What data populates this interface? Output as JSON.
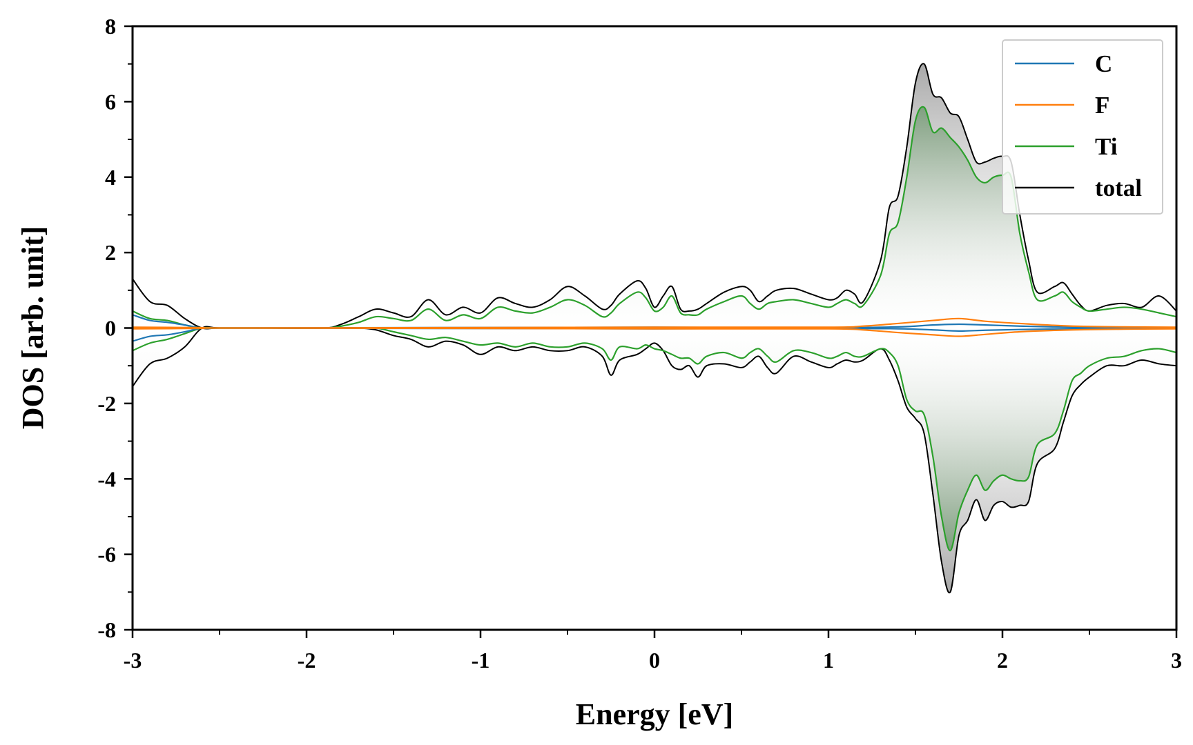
{
  "chart_data": {
    "type": "line",
    "xlabel": "Energy [eV]",
    "ylabel": "DOS [arb. unit]",
    "xlim": [
      -3,
      3
    ],
    "ylim": [
      -8,
      8
    ],
    "x_ticks": [
      -3,
      -2,
      -1,
      0,
      1,
      2,
      3
    ],
    "y_ticks": [
      -8,
      -6,
      -4,
      -2,
      0,
      2,
      4,
      6,
      8
    ],
    "x_tick_labels": [
      "-3",
      "-2",
      "-1",
      "0",
      "1",
      "2",
      "3"
    ],
    "y_tick_labels": [
      "-8",
      "-6",
      "-4",
      "-2",
      "0",
      "2",
      "4",
      "6",
      "8"
    ],
    "grid": false,
    "legend_position": "top-right",
    "series": [
      {
        "name": "C",
        "color": "#1f77b4",
        "x": [
          -3.0,
          -2.9,
          -2.8,
          -2.7,
          -2.6,
          -2.5,
          0.0,
          1.0,
          1.4,
          1.6,
          1.75,
          1.9,
          2.1,
          2.4,
          2.7,
          3.0
        ],
        "up": [
          0.35,
          0.2,
          0.15,
          0.08,
          0.0,
          0.0,
          0.02,
          0.01,
          0.03,
          0.08,
          0.1,
          0.08,
          0.05,
          0.02,
          0.01,
          0.01
        ],
        "down": [
          -0.35,
          -0.22,
          -0.18,
          -0.1,
          0.0,
          0.0,
          -0.02,
          -0.01,
          -0.02,
          -0.05,
          -0.08,
          -0.06,
          -0.04,
          -0.02,
          -0.01,
          -0.01
        ]
      },
      {
        "name": "F",
        "color": "#ff7f0e",
        "x": [
          -3.0,
          -2.6,
          -2.5,
          0.0,
          1.0,
          1.2,
          1.4,
          1.6,
          1.75,
          1.9,
          2.1,
          2.4,
          2.7,
          3.0
        ],
        "up": [
          0.02,
          0.01,
          0.0,
          0.02,
          0.02,
          0.05,
          0.12,
          0.2,
          0.25,
          0.18,
          0.12,
          0.05,
          0.03,
          0.02
        ],
        "down": [
          -0.02,
          -0.01,
          0.0,
          -0.02,
          -0.02,
          -0.05,
          -0.12,
          -0.18,
          -0.22,
          -0.17,
          -0.1,
          -0.05,
          -0.03,
          -0.02
        ]
      },
      {
        "name": "Ti",
        "color": "#2ca02c",
        "x": [
          -3.0,
          -2.9,
          -2.8,
          -2.7,
          -2.6,
          -2.5,
          -2.2,
          -1.9,
          -1.8,
          -1.7,
          -1.6,
          -1.5,
          -1.4,
          -1.3,
          -1.2,
          -1.1,
          -1.0,
          -0.9,
          -0.8,
          -0.7,
          -0.6,
          -0.5,
          -0.4,
          -0.3,
          -0.25,
          -0.2,
          -0.1,
          -0.05,
          0.0,
          0.05,
          0.1,
          0.15,
          0.2,
          0.25,
          0.3,
          0.4,
          0.5,
          0.55,
          0.6,
          0.65,
          0.7,
          0.8,
          0.9,
          1.0,
          1.05,
          1.1,
          1.15,
          1.2,
          1.3,
          1.35,
          1.4,
          1.45,
          1.5,
          1.55,
          1.6,
          1.65,
          1.7,
          1.75,
          1.8,
          1.85,
          1.9,
          1.95,
          2.0,
          2.05,
          2.1,
          2.15,
          2.2,
          2.3,
          2.35,
          2.4,
          2.45,
          2.5,
          2.6,
          2.7,
          2.8,
          2.9,
          3.0
        ],
        "up": [
          0.45,
          0.25,
          0.2,
          0.08,
          0.0,
          0.0,
          0.0,
          0.0,
          0.05,
          0.15,
          0.3,
          0.25,
          0.2,
          0.5,
          0.2,
          0.35,
          0.25,
          0.55,
          0.45,
          0.4,
          0.55,
          0.75,
          0.6,
          0.3,
          0.4,
          0.65,
          0.95,
          0.8,
          0.45,
          0.55,
          0.85,
          0.4,
          0.35,
          0.35,
          0.5,
          0.7,
          0.85,
          0.65,
          0.5,
          0.65,
          0.7,
          0.75,
          0.65,
          0.55,
          0.65,
          0.75,
          0.65,
          0.6,
          1.4,
          2.5,
          2.8,
          4.0,
          5.5,
          5.85,
          5.2,
          5.3,
          5.05,
          4.8,
          4.45,
          4.0,
          3.85,
          4.0,
          4.05,
          4.0,
          2.5,
          1.5,
          0.75,
          0.85,
          0.95,
          0.7,
          0.55,
          0.45,
          0.5,
          0.55,
          0.5,
          0.4,
          0.3
        ],
        "down": [
          -0.6,
          -0.4,
          -0.3,
          -0.15,
          0.0,
          0.0,
          0.0,
          0.0,
          0.0,
          0.0,
          0.0,
          -0.1,
          -0.2,
          -0.3,
          -0.25,
          -0.35,
          -0.45,
          -0.4,
          -0.5,
          -0.4,
          -0.5,
          -0.5,
          -0.4,
          -0.55,
          -0.85,
          -0.5,
          -0.55,
          -0.45,
          -0.55,
          -0.6,
          -0.7,
          -0.8,
          -0.8,
          -0.95,
          -0.75,
          -0.65,
          -0.8,
          -0.65,
          -0.55,
          -0.75,
          -0.9,
          -0.6,
          -0.65,
          -0.8,
          -0.75,
          -0.65,
          -0.75,
          -0.75,
          -0.55,
          -0.65,
          -1.0,
          -1.9,
          -2.2,
          -2.3,
          -3.4,
          -5.0,
          -5.9,
          -4.9,
          -4.3,
          -3.9,
          -4.3,
          -4.05,
          -3.9,
          -4.0,
          -4.05,
          -3.95,
          -3.1,
          -2.8,
          -2.2,
          -1.4,
          -1.2,
          -1.0,
          -0.8,
          -0.75,
          -0.6,
          -0.55,
          -0.65
        ]
      },
      {
        "name": "total",
        "color": "#000000",
        "x": [
          -3.0,
          -2.9,
          -2.8,
          -2.7,
          -2.6,
          -2.5,
          -2.2,
          -1.9,
          -1.8,
          -1.7,
          -1.6,
          -1.5,
          -1.4,
          -1.3,
          -1.2,
          -1.1,
          -1.0,
          -0.9,
          -0.8,
          -0.7,
          -0.6,
          -0.5,
          -0.4,
          -0.3,
          -0.25,
          -0.2,
          -0.1,
          -0.05,
          0.0,
          0.05,
          0.1,
          0.15,
          0.2,
          0.25,
          0.3,
          0.4,
          0.5,
          0.55,
          0.6,
          0.65,
          0.7,
          0.8,
          0.9,
          1.0,
          1.05,
          1.1,
          1.15,
          1.2,
          1.3,
          1.35,
          1.4,
          1.45,
          1.5,
          1.55,
          1.6,
          1.65,
          1.7,
          1.75,
          1.8,
          1.85,
          1.9,
          1.95,
          2.0,
          2.05,
          2.1,
          2.15,
          2.2,
          2.3,
          2.35,
          2.4,
          2.45,
          2.5,
          2.6,
          2.7,
          2.8,
          2.9,
          3.0
        ],
        "up": [
          1.3,
          0.7,
          0.6,
          0.25,
          0.0,
          0.0,
          0.0,
          0.0,
          0.1,
          0.3,
          0.5,
          0.4,
          0.3,
          0.75,
          0.35,
          0.55,
          0.4,
          0.8,
          0.65,
          0.55,
          0.75,
          1.1,
          0.85,
          0.5,
          0.6,
          0.9,
          1.25,
          1.05,
          0.55,
          0.85,
          1.1,
          0.5,
          0.45,
          0.5,
          0.65,
          0.95,
          1.1,
          1.0,
          0.7,
          0.85,
          1.0,
          1.05,
          0.9,
          0.75,
          0.8,
          1.0,
          0.9,
          0.7,
          1.8,
          3.2,
          3.5,
          4.8,
          6.5,
          7.0,
          6.2,
          6.1,
          5.7,
          5.6,
          5.0,
          4.4,
          4.4,
          4.5,
          4.55,
          4.4,
          3.0,
          1.8,
          0.95,
          1.1,
          1.2,
          0.9,
          0.6,
          0.45,
          0.6,
          0.65,
          0.55,
          0.85,
          0.45
        ],
        "down": [
          -1.55,
          -0.95,
          -0.8,
          -0.5,
          0.0,
          0.0,
          0.0,
          0.0,
          0.0,
          0.0,
          -0.05,
          -0.2,
          -0.3,
          -0.5,
          -0.35,
          -0.45,
          -0.7,
          -0.5,
          -0.6,
          -0.5,
          -0.6,
          -0.6,
          -0.5,
          -0.75,
          -1.25,
          -0.85,
          -0.7,
          -0.55,
          -0.4,
          -0.6,
          -1.0,
          -1.1,
          -1.0,
          -1.3,
          -1.0,
          -0.95,
          -1.05,
          -0.9,
          -0.75,
          -1.05,
          -1.2,
          -0.75,
          -0.9,
          -1.05,
          -0.95,
          -0.85,
          -0.9,
          -0.85,
          -0.55,
          -0.85,
          -1.4,
          -2.1,
          -2.4,
          -2.8,
          -4.4,
          -6.2,
          -7.0,
          -5.5,
          -5.1,
          -4.55,
          -5.1,
          -4.7,
          -4.6,
          -4.75,
          -4.7,
          -4.6,
          -3.6,
          -3.2,
          -2.5,
          -1.8,
          -1.5,
          -1.3,
          -1.0,
          -1.0,
          -0.85,
          -0.95,
          -1.0
        ]
      }
    ]
  }
}
